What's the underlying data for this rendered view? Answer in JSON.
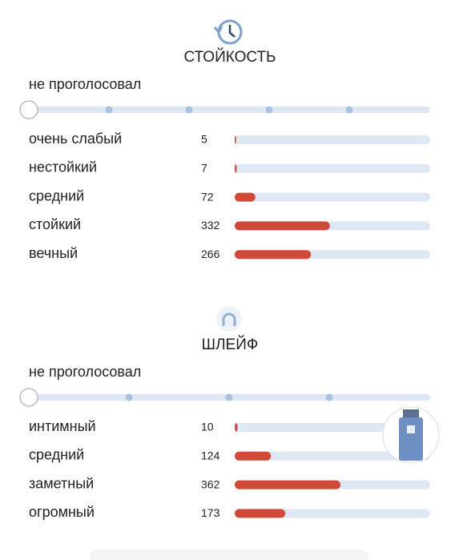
{
  "sections": [
    {
      "title": "СТОЙКОСТЬ",
      "vote_status": "не проголосовал",
      "options": [
        {
          "label": "очень слабый",
          "count": 5
        },
        {
          "label": "нестойкий",
          "count": 7
        },
        {
          "label": "средний",
          "count": 72
        },
        {
          "label": "стойкий",
          "count": 332
        },
        {
          "label": "вечный",
          "count": 266
        }
      ]
    },
    {
      "title": "ШЛЕЙФ",
      "vote_status": "не проголосовал",
      "options": [
        {
          "label": "интимный",
          "count": 10
        },
        {
          "label": "средний",
          "count": 124
        },
        {
          "label": "заметный",
          "count": 362
        },
        {
          "label": "огромный",
          "count": 173
        }
      ]
    }
  ]
}
